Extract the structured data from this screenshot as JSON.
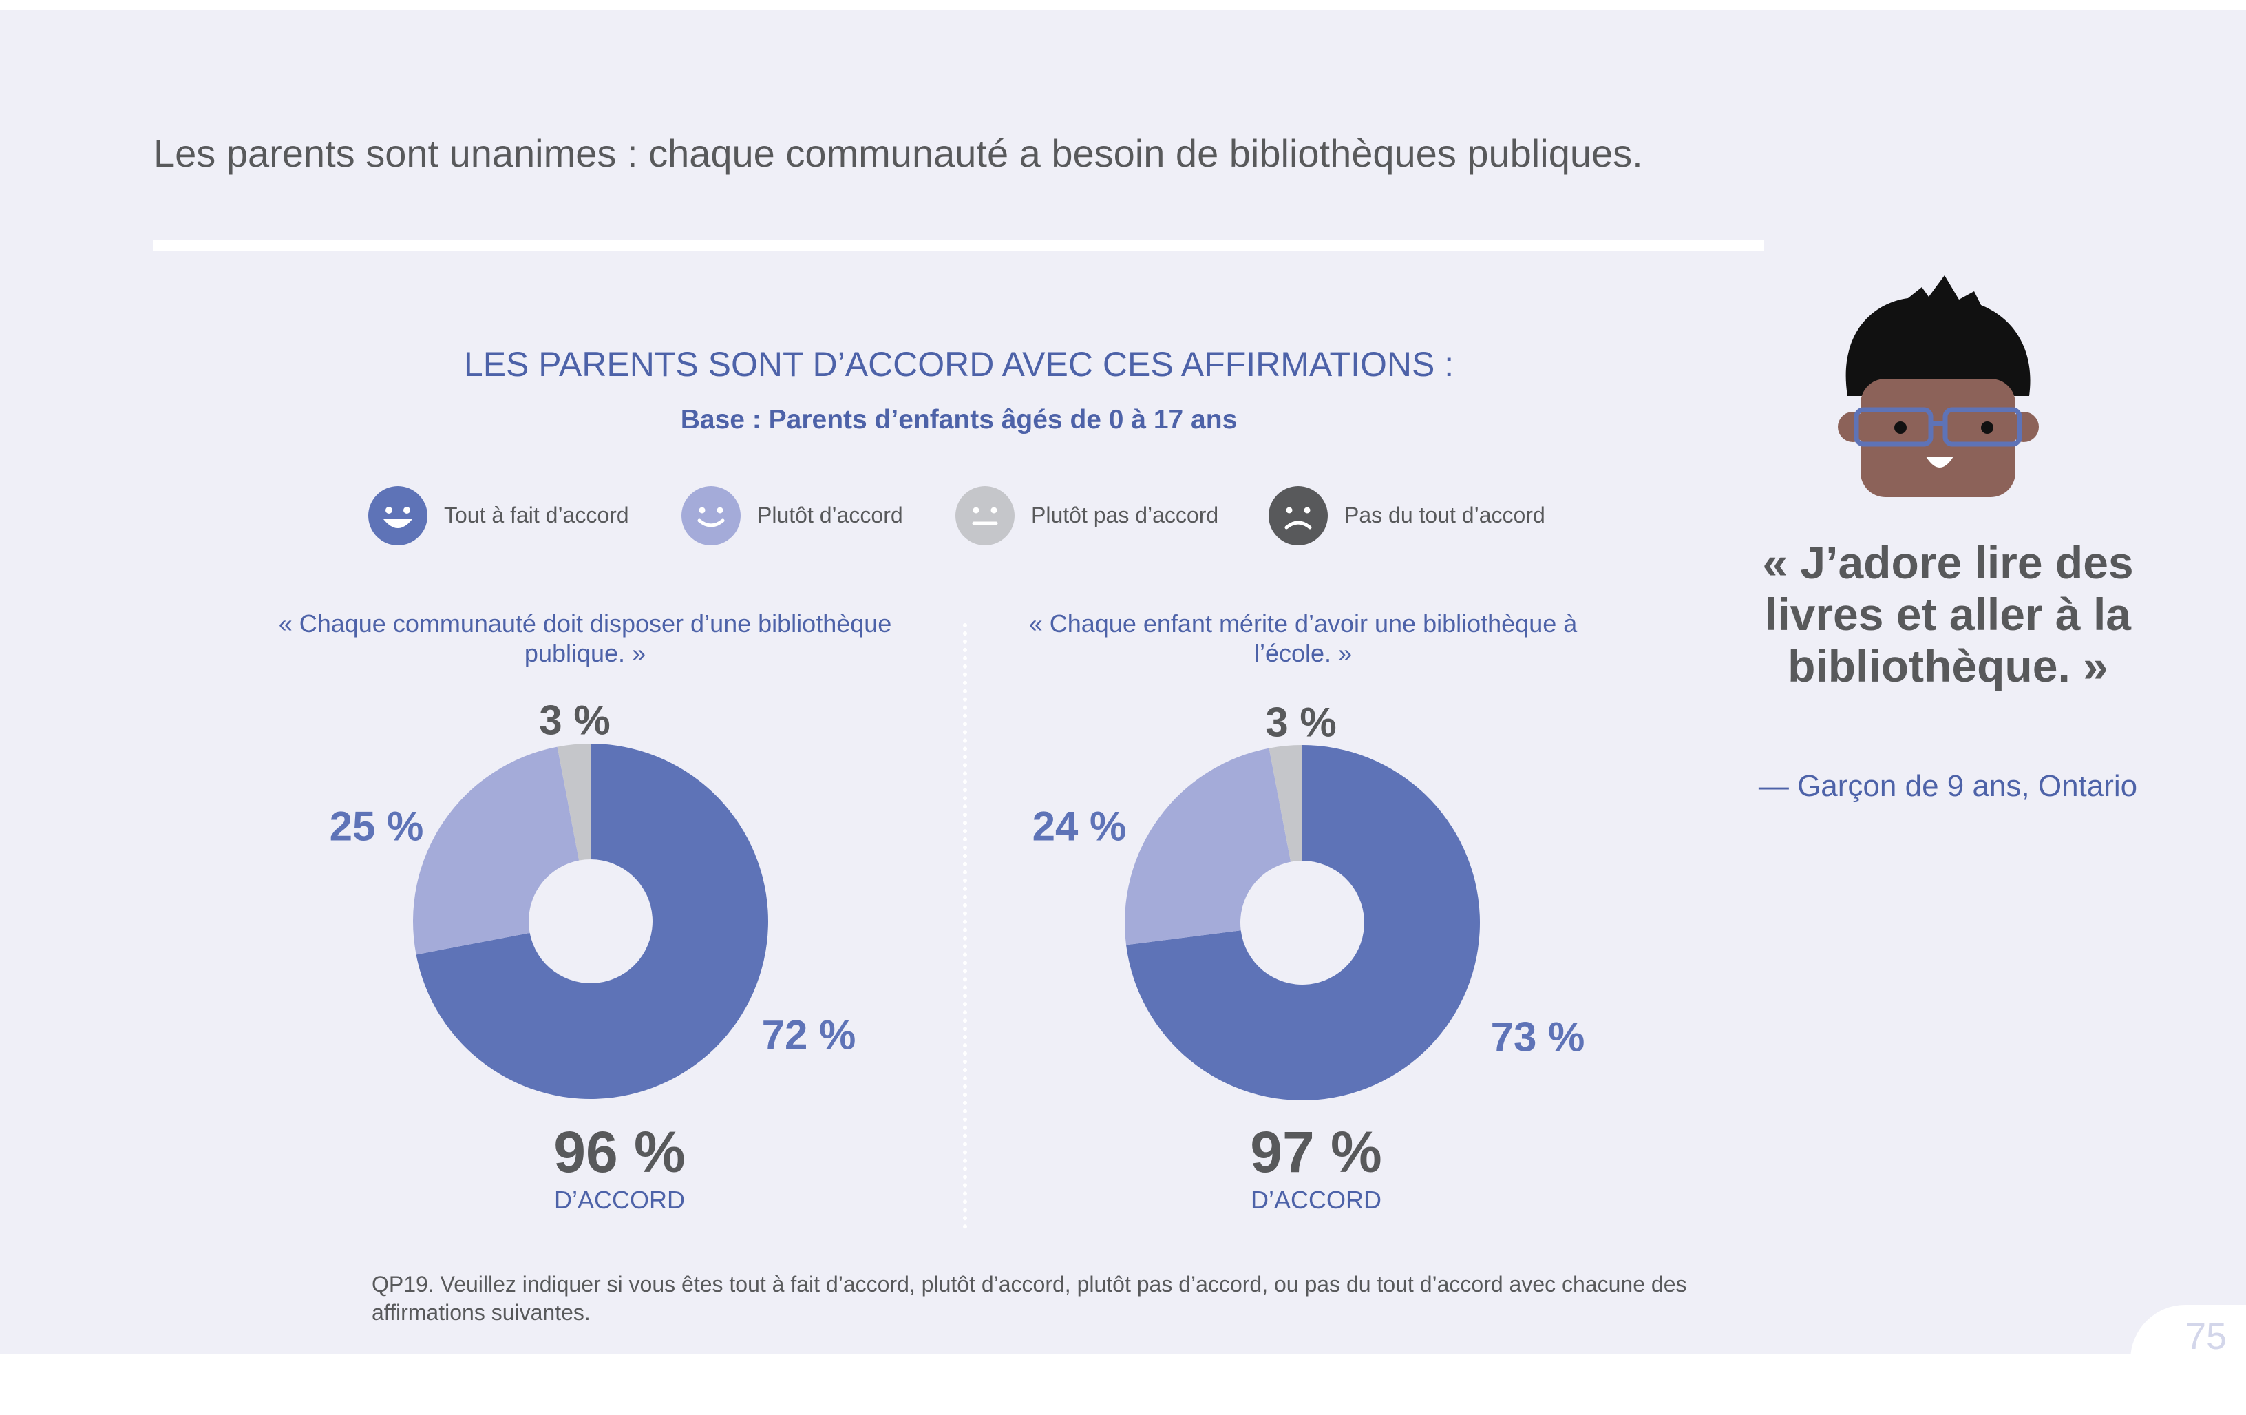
{
  "headline": "Les parents sont unanimes : chaque communauté a besoin de bibliothèques publiques.",
  "chart_data": [
    {
      "type": "pie",
      "title": "LES PARENTS SONT D’ACCORD AVEC CES AFFIRMATIONS :",
      "subtitle": "Base : Parents d’enfants âgés de 0 à 17 ans",
      "statement": "« Chaque communauté doit disposer d’une bibliothèque publique. »",
      "categories": [
        "Tout à fait d’accord",
        "Plutôt d’accord",
        "Plutôt pas d’accord"
      ],
      "values": [
        72,
        25,
        3
      ],
      "labels": [
        "72 %",
        "25 %",
        "3 %"
      ],
      "colors": [
        "#5e73b7",
        "#a4abd9",
        "#c5c6ca"
      ],
      "total": "96 %",
      "total_label": "D’ACCORD"
    },
    {
      "type": "pie",
      "title": "LES PARENTS SONT D’ACCORD AVEC CES AFFIRMATIONS :",
      "subtitle": "Base : Parents d’enfants âgés de 0 à 17 ans",
      "statement": "« Chaque enfant mérite d’avoir une bibliothèque à l’école. »",
      "categories": [
        "Tout à fait d’accord",
        "Plutôt d’accord",
        "Plutôt pas d’accord"
      ],
      "values": [
        73,
        24,
        3
      ],
      "labels": [
        "73 %",
        "24 %",
        "3 %"
      ],
      "colors": [
        "#5e73b7",
        "#a4abd9",
        "#c5c6ca"
      ],
      "total": "97 %",
      "total_label": "D’ACCORD"
    }
  ],
  "legend": [
    {
      "label": "Tout à fait d’accord",
      "icon": "big-smile-face-icon",
      "color": "#5e73b7"
    },
    {
      "label": "Plutôt d’accord",
      "icon": "smile-face-icon",
      "color": "#a4abd9"
    },
    {
      "label": "Plutôt pas d’accord",
      "icon": "neutral-face-icon",
      "color": "#c5c6ca"
    },
    {
      "label": "Pas du tout d’accord",
      "icon": "sad-face-icon",
      "color": "#58595b"
    }
  ],
  "quote": {
    "text": "« J’adore lire des livres et aller à la bibliothèque. »",
    "attribution": "— Garçon de 9 ans, Ontario",
    "avatar_icon": "boy-with-glasses-avatar-icon"
  },
  "footnote": "QP19. Veuillez indiquer si vous êtes tout à fait d’accord, plutôt d’accord, plutôt pas d’accord, ou pas du tout d’accord avec chacune des affirmations suivantes.",
  "page_number": "75"
}
